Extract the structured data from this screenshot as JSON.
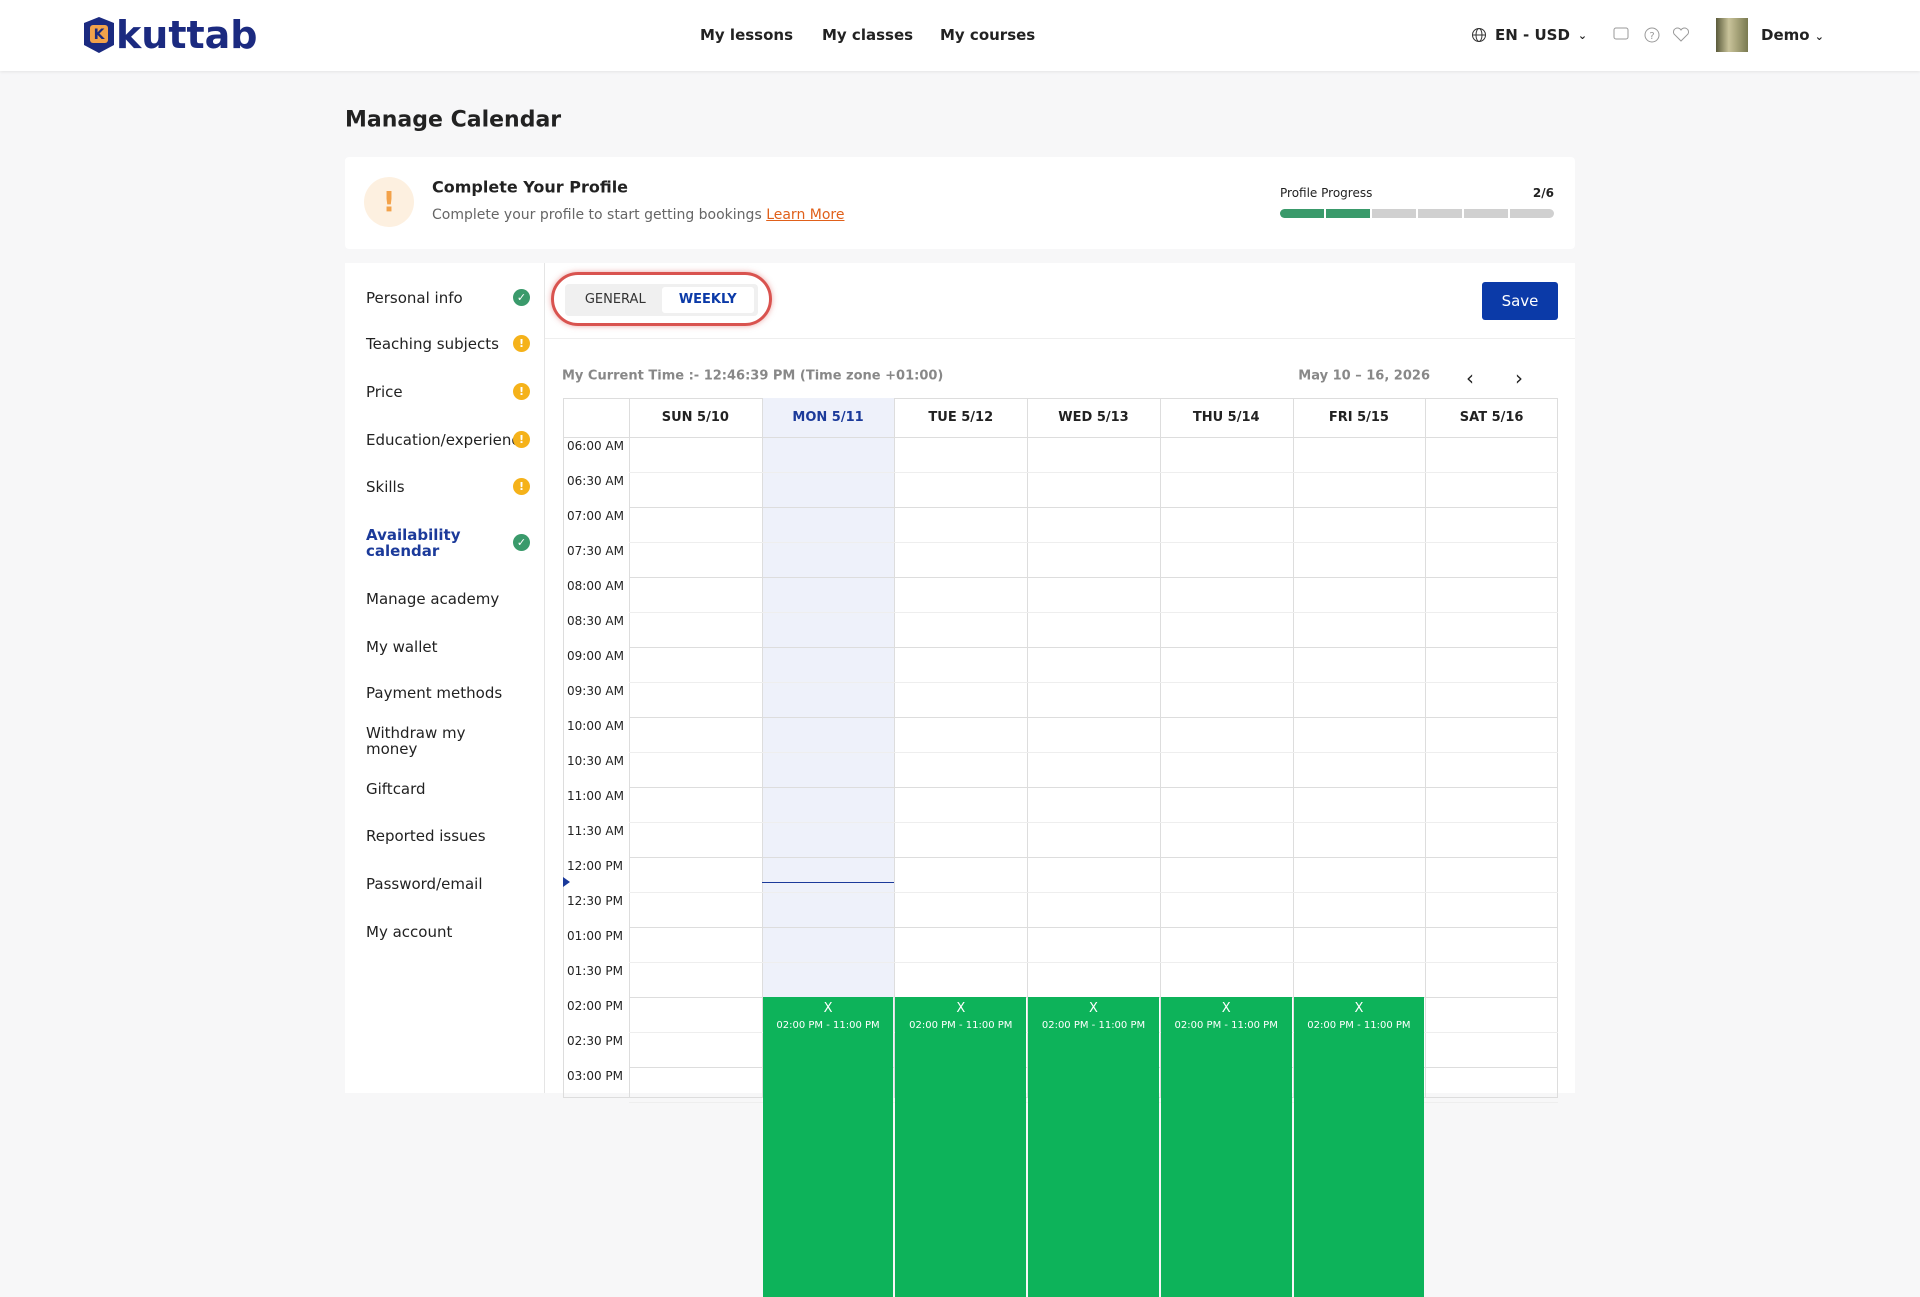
{
  "header": {
    "logo": "kuttab",
    "nav": [
      "My lessons",
      "My classes",
      "My courses"
    ],
    "language": "EN - USD",
    "user": "Demo"
  },
  "page_title": "Manage Calendar",
  "profile_card": {
    "title": "Complete Your Profile",
    "text": "Complete your profile to start getting bookings",
    "link": "Learn More",
    "progress_label": "Profile Progress",
    "progress": {
      "value": 2,
      "max": 6,
      "label": "2/6"
    }
  },
  "sidebar": [
    {
      "label": "Personal info",
      "status": "complete"
    },
    {
      "label": "Teaching subjects",
      "status": "incomplete"
    },
    {
      "label": "Price",
      "status": "incomplete"
    },
    {
      "label": "Education/experience",
      "status": "incomplete"
    },
    {
      "label": "Skills",
      "status": "incomplete"
    },
    {
      "label": "Availability calendar",
      "status": "complete",
      "active": true
    },
    {
      "label": "Manage academy"
    },
    {
      "label": "My wallet"
    },
    {
      "label": "Payment methods"
    },
    {
      "label": "Withdraw my money"
    },
    {
      "label": "Giftcard"
    },
    {
      "label": "Reported issues"
    },
    {
      "label": "Password/email"
    },
    {
      "label": "My account"
    }
  ],
  "tabs": {
    "items": [
      "GENERAL",
      "WEEKLY"
    ],
    "active": 1
  },
  "save": "Save",
  "calendar": {
    "current_time": "My Current Time :- 12:46:39 PM (Time zone +01:00)",
    "range": "May 10 – 16, 2026",
    "days": [
      "SUN 5/10",
      "MON 5/11",
      "TUE 5/12",
      "WED 5/13",
      "THU 5/14",
      "FRI 5/15",
      "SAT 5/16"
    ],
    "today": 1,
    "times": [
      "06:00 AM",
      "06:30 AM",
      "07:00 AM",
      "07:30 AM",
      "08:00 AM",
      "08:30 AM",
      "09:00 AM",
      "09:30 AM",
      "10:00 AM",
      "10:30 AM",
      "11:00 AM",
      "11:30 AM",
      "12:00 PM",
      "12:30 PM",
      "01:00 PM",
      "01:30 PM",
      "02:00 PM",
      "02:30 PM",
      "03:00 PM"
    ],
    "events": [
      null,
      {
        "label": "X",
        "time": "02:00 PM - 11:00 PM"
      },
      {
        "label": "X",
        "time": "02:00 PM - 11:00 PM"
      },
      {
        "label": "X",
        "time": "02:00 PM - 11:00 PM"
      },
      {
        "label": "X",
        "time": "02:00 PM - 11:00 PM"
      },
      {
        "label": "X",
        "time": "02:00 PM - 11:00 PM"
      },
      null
    ]
  }
}
